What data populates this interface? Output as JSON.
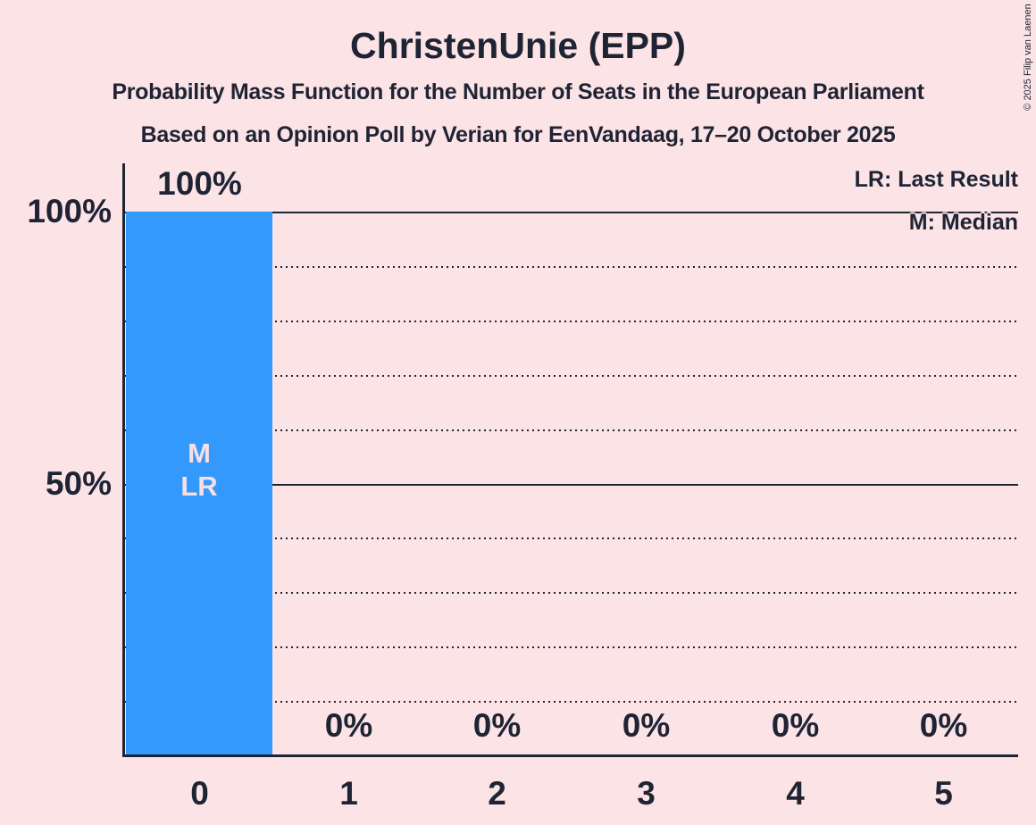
{
  "title": "ChristenUnie (EPP)",
  "subtitle": "Probability Mass Function for the Number of Seats in the European Parliament",
  "source_line": "Based on an Opinion Poll by Verian for EenVandaag, 17–20 October 2025",
  "copyright": "© 2025 Filip van Laenen",
  "legend": {
    "last_result": "LR: Last Result",
    "median": "M: Median"
  },
  "y_axis": {
    "label_100": "100%",
    "label_50": "50%"
  },
  "bar_annotation": {
    "median": "M",
    "last_result": "LR"
  },
  "colors": {
    "background": "#fbe3e6",
    "bar": "#3399fc",
    "ink": "#1f2435",
    "bar-label": "#f8dfe4"
  },
  "chart_data": {
    "type": "bar",
    "title": "ChristenUnie (EPP)",
    "categories": [
      "0",
      "1",
      "2",
      "3",
      "4",
      "5"
    ],
    "values": [
      100,
      0,
      0,
      0,
      0,
      0
    ],
    "value_labels": [
      "100%",
      "0%",
      "0%",
      "0%",
      "0%",
      "0%"
    ],
    "ylim": [
      0,
      100
    ],
    "y_tick_labels_shown": [
      "100%",
      "50%"
    ],
    "gridlines": {
      "solid_percent": [
        100,
        50
      ],
      "dotted_percent": [
        90,
        80,
        70,
        60,
        40,
        30,
        20,
        10
      ]
    },
    "annotations": [
      {
        "category": "0",
        "labels": [
          "M",
          "LR"
        ],
        "meaning": [
          "Median",
          "Last Result"
        ]
      }
    ],
    "legend_position": "top-right",
    "bar_color": "#3399fc"
  }
}
